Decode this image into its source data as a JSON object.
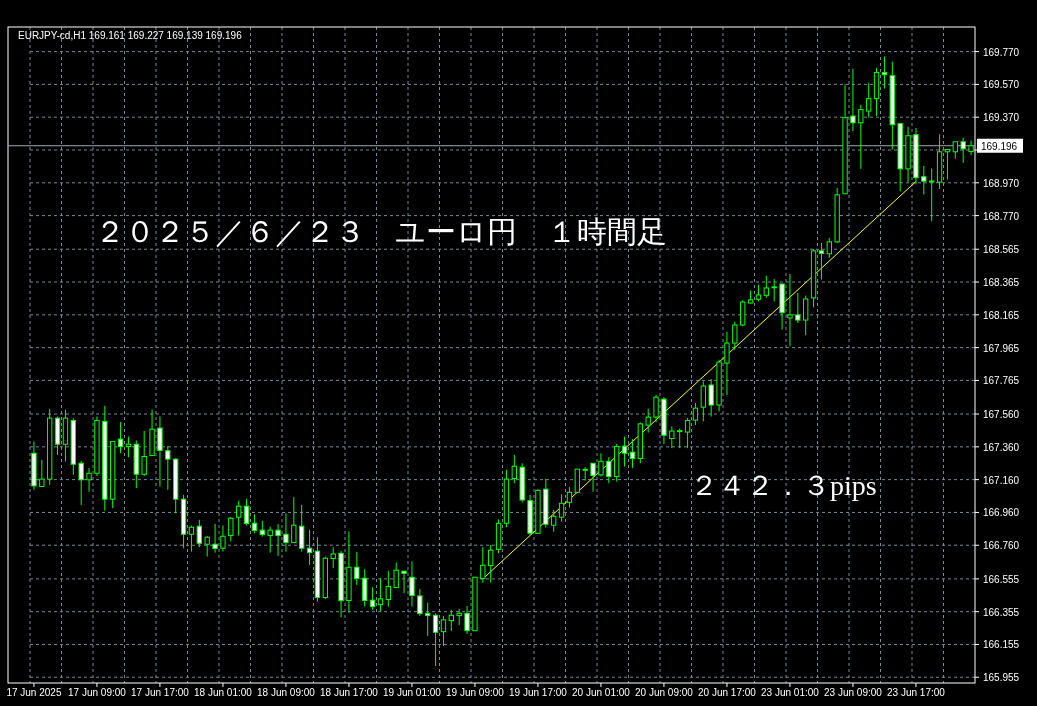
{
  "chart_data": {
    "type": "candlestick",
    "title": "２０２５／６／２３　ユーロ円　１時間足",
    "subtitle": "EURJPY-cd,H1  169.161 169.227 169.139 169.196",
    "annotations": [
      "２４２．３pips"
    ],
    "categories": [
      "17 Jun 2025",
      null,
      null,
      null,
      null,
      null,
      null,
      null,
      "17 Jun 09:00",
      null,
      null,
      null,
      null,
      null,
      null,
      null,
      "17 Jun 17:00",
      null,
      null,
      null,
      null,
      null,
      null,
      null,
      "18 Jun 01:00",
      null,
      null,
      null,
      null,
      null,
      null,
      null,
      "18 Jun 09:00",
      null,
      null,
      null,
      null,
      null,
      null,
      null,
      "18 Jun 17:00",
      null,
      null,
      null,
      null,
      null,
      null,
      null,
      "19 Jun 01:00",
      null,
      null,
      null,
      null,
      null,
      null,
      null,
      "19 Jun 09:00",
      null,
      null,
      null,
      null,
      null,
      null,
      null,
      "19 Jun 17:00",
      null,
      null,
      null,
      null,
      null,
      null,
      null,
      "20 Jun 01:00",
      null,
      null,
      null,
      null,
      null,
      null,
      null,
      "20 Jun 09:00",
      null,
      null,
      null,
      null,
      null,
      null,
      null,
      "20 Jun 17:00",
      null,
      null,
      null,
      null,
      null,
      null,
      null,
      "23 Jun 01:00",
      null,
      null,
      null,
      null,
      null,
      null,
      null,
      "23 Jun 09:00",
      null,
      null,
      null,
      null,
      null,
      null,
      null,
      "23 Jun 17:00",
      null,
      null,
      null,
      null,
      null,
      null,
      null
    ],
    "ohlc": [
      [
        167.321,
        167.393,
        167.098,
        167.122
      ],
      [
        167.118,
        167.281,
        167.118,
        167.163
      ],
      [
        167.163,
        167.59,
        167.128,
        167.535
      ],
      [
        167.535,
        167.545,
        167.311,
        167.376
      ],
      [
        167.376,
        167.586,
        167.27,
        167.535
      ],
      [
        167.521,
        167.535,
        167.189,
        167.254
      ],
      [
        167.26,
        167.275,
        167.006,
        167.159
      ],
      [
        167.159,
        167.23,
        167.087,
        167.199
      ],
      [
        167.199,
        167.545,
        167.183,
        167.521
      ],
      [
        167.515,
        167.61,
        166.971,
        167.041
      ],
      [
        167.041,
        167.393,
        166.986,
        167.393
      ],
      [
        167.407,
        167.511,
        167.321,
        167.362
      ],
      [
        167.362,
        167.423,
        167.297,
        167.376
      ],
      [
        167.376,
        167.399,
        167.108,
        167.193
      ],
      [
        167.193,
        167.458,
        167.183,
        167.301
      ],
      [
        167.307,
        167.586,
        167.307,
        167.468
      ],
      [
        167.474,
        167.545,
        167.118,
        167.338
      ],
      [
        167.336,
        167.366,
        167.098,
        167.285
      ],
      [
        167.285,
        167.291,
        166.955,
        167.041
      ],
      [
        167.041,
        167.067,
        166.741,
        166.827
      ],
      [
        166.827,
        166.88,
        166.721,
        166.87
      ],
      [
        166.876,
        166.915,
        166.748,
        166.772
      ],
      [
        166.766,
        166.817,
        166.691,
        166.809
      ],
      [
        166.766,
        166.89,
        166.715,
        166.74
      ],
      [
        166.742,
        166.88,
        166.721,
        166.815
      ],
      [
        166.819,
        166.931,
        166.783,
        166.925
      ],
      [
        166.931,
        167.031,
        166.819,
        166.998
      ],
      [
        166.998,
        167.043,
        166.88,
        166.892
      ],
      [
        166.894,
        166.949,
        166.833,
        166.85
      ],
      [
        166.852,
        166.909,
        166.813,
        166.825
      ],
      [
        166.819,
        166.874,
        166.715,
        166.852
      ],
      [
        166.852,
        166.89,
        166.695,
        166.819
      ],
      [
        166.827,
        166.955,
        166.721,
        166.776
      ],
      [
        166.776,
        167.053,
        166.776,
        166.882
      ],
      [
        166.876,
        167.006,
        166.721,
        166.742
      ],
      [
        166.742,
        166.854,
        166.64,
        166.715
      ],
      [
        166.724,
        166.809,
        166.416,
        166.441
      ],
      [
        166.441,
        166.691,
        166.432,
        166.681
      ],
      [
        166.679,
        166.748,
        166.62,
        166.707
      ],
      [
        166.711,
        166.725,
        166.321,
        166.422
      ],
      [
        166.423,
        166.844,
        166.349,
        166.626
      ],
      [
        166.626,
        166.718,
        166.518,
        166.557
      ],
      [
        166.559,
        166.614,
        166.386,
        166.423
      ],
      [
        166.425,
        166.504,
        166.366,
        166.386
      ],
      [
        166.398,
        166.559,
        166.355,
        166.433
      ],
      [
        166.429,
        166.604,
        166.386,
        166.508
      ],
      [
        166.502,
        166.655,
        166.502,
        166.608
      ],
      [
        166.602,
        166.602,
        166.467,
        166.589
      ],
      [
        166.565,
        166.661,
        166.386,
        166.453
      ],
      [
        166.451,
        166.494,
        166.329,
        166.343
      ],
      [
        166.345,
        166.41,
        166.207,
        166.331
      ],
      [
        166.333,
        166.345,
        166.024,
        166.229
      ],
      [
        166.233,
        166.329,
        166.146,
        166.305
      ],
      [
        166.3,
        166.366,
        166.237,
        166.333
      ],
      [
        166.331,
        166.372,
        166.274,
        166.345
      ],
      [
        166.345,
        166.39,
        166.219,
        166.239
      ],
      [
        166.239,
        166.565,
        166.239,
        166.565
      ],
      [
        166.557,
        166.748,
        166.532,
        166.638
      ],
      [
        166.636,
        166.762,
        166.532,
        166.73
      ],
      [
        166.735,
        166.918,
        166.711,
        166.894
      ],
      [
        166.894,
        167.22,
        166.87,
        167.163
      ],
      [
        167.167,
        167.311,
        167.138,
        167.242
      ],
      [
        167.236,
        167.26,
        167.02,
        167.036
      ],
      [
        167.032,
        167.067,
        166.823,
        166.833
      ],
      [
        166.833,
        167.102,
        166.829,
        167.095
      ],
      [
        167.102,
        167.165,
        166.868,
        166.888
      ],
      [
        166.882,
        166.975,
        166.843,
        166.937
      ],
      [
        166.931,
        167.071,
        166.904,
        167.016
      ],
      [
        167.022,
        167.114,
        166.99,
        167.083
      ],
      [
        167.083,
        167.224,
        167.077,
        167.224
      ],
      [
        167.22,
        167.236,
        167.154,
        167.22
      ],
      [
        167.26,
        167.26,
        167.087,
        167.185
      ],
      [
        167.189,
        167.321,
        167.179,
        167.272
      ],
      [
        167.272,
        167.297,
        167.138,
        167.179
      ],
      [
        167.179,
        167.378,
        167.148,
        167.362
      ],
      [
        167.364,
        167.423,
        167.24,
        167.321
      ],
      [
        167.327,
        167.407,
        167.232,
        167.289
      ],
      [
        167.289,
        167.509,
        167.26,
        167.5
      ],
      [
        167.492,
        167.592,
        167.447,
        167.541
      ],
      [
        167.541,
        167.677,
        167.509,
        167.663
      ],
      [
        167.651,
        167.663,
        167.376,
        167.431
      ],
      [
        167.411,
        167.484,
        167.352,
        167.456
      ],
      [
        167.45,
        167.472,
        167.352,
        167.456
      ],
      [
        167.45,
        167.535,
        167.352,
        167.521
      ],
      [
        167.523,
        167.627,
        167.493,
        167.596
      ],
      [
        167.602,
        167.759,
        167.515,
        167.731
      ],
      [
        167.737,
        167.773,
        167.545,
        167.615
      ],
      [
        167.615,
        167.891,
        167.576,
        167.877
      ],
      [
        167.871,
        168.062,
        167.676,
        167.993
      ],
      [
        167.993,
        168.123,
        167.952,
        168.103
      ],
      [
        168.103,
        168.254,
        168.095,
        168.243
      ],
      [
        168.237,
        168.313,
        168.233,
        168.256
      ],
      [
        168.26,
        168.349,
        168.247,
        168.286
      ],
      [
        168.284,
        168.404,
        168.268,
        168.329
      ],
      [
        168.327,
        168.384,
        168.247,
        168.333
      ],
      [
        168.353,
        168.353,
        168.075,
        168.178
      ],
      [
        168.146,
        168.414,
        167.973,
        168.164
      ],
      [
        168.164,
        168.298,
        168.115,
        168.133
      ],
      [
        168.133,
        168.282,
        168.04,
        168.262
      ],
      [
        168.268,
        168.567,
        168.211,
        168.555
      ],
      [
        168.555,
        168.604,
        168.38,
        168.539
      ],
      [
        168.537,
        168.634,
        168.512,
        168.61
      ],
      [
        168.61,
        168.939,
        168.604,
        168.897
      ],
      [
        168.903,
        169.57,
        168.903,
        169.367
      ],
      [
        169.377,
        169.666,
        169.285,
        169.336
      ],
      [
        169.336,
        169.446,
        169.055,
        169.416
      ],
      [
        169.408,
        169.58,
        169.367,
        169.483
      ],
      [
        169.483,
        169.672,
        169.377,
        169.642
      ],
      [
        169.642,
        169.739,
        169.544,
        169.629
      ],
      [
        169.623,
        169.709,
        169.173,
        169.324
      ],
      [
        169.33,
        169.33,
        168.919,
        169.055
      ],
      [
        169.055,
        169.312,
        168.974,
        169.257
      ],
      [
        169.263,
        169.304,
        168.96,
        169.001
      ],
      [
        169.007,
        169.072,
        168.899,
        168.98
      ],
      [
        168.978,
        169.057,
        168.736,
        168.978
      ],
      [
        168.974,
        169.265,
        168.933,
        169.159
      ],
      [
        169.159,
        169.173,
        168.99,
        169.173
      ],
      [
        169.159,
        169.22,
        169.117,
        169.22
      ],
      [
        169.22,
        169.245,
        169.092,
        169.177
      ],
      [
        169.161,
        169.227,
        169.139,
        169.196
      ]
    ],
    "series": [
      {
        "type": "line",
        "color": "#ffff00",
        "values": [
          null,
          null,
          null,
          null,
          null,
          null,
          null,
          null,
          null,
          null,
          null,
          null,
          null,
          null,
          null,
          null,
          null,
          null,
          null,
          null,
          null,
          null,
          null,
          null,
          null,
          null,
          null,
          null,
          null,
          null,
          null,
          null,
          null,
          null,
          null,
          null,
          null,
          null,
          null,
          null,
          null,
          null,
          null,
          null,
          null,
          null,
          null,
          null,
          null,
          null,
          null,
          null,
          null,
          null,
          null,
          null,
          null,
          166.555,
          null,
          null,
          null,
          null,
          null,
          null,
          null,
          null,
          null,
          null,
          null,
          null,
          null,
          null,
          null,
          null,
          null,
          null,
          null,
          null,
          null,
          null,
          null,
          null,
          null,
          null,
          null,
          null,
          null,
          null,
          null,
          null,
          null,
          null,
          null,
          null,
          null,
          null,
          null,
          null,
          null,
          null,
          null,
          null,
          null,
          null,
          null,
          null,
          null,
          null,
          null,
          null,
          null,
          null,
          168.978,
          null,
          null,
          null,
          null,
          null,
          null,
          null
        ]
      }
    ],
    "ylim": [
      165.92,
      169.92
    ],
    "yticks": [
      {
        "value": 165.955,
        "label": "165.955"
      },
      {
        "value": 166.155,
        "label": "166.155"
      },
      {
        "value": 166.355,
        "label": "166.355"
      },
      {
        "value": 166.555,
        "label": "166.555"
      },
      {
        "value": 166.76,
        "label": "166.760"
      },
      {
        "value": 166.96,
        "label": "166.960"
      },
      {
        "value": 167.16,
        "label": "167.160"
      },
      {
        "value": 167.36,
        "label": "167.360"
      },
      {
        "value": 167.56,
        "label": "167.560"
      },
      {
        "value": 167.765,
        "label": "167.765"
      },
      {
        "value": 167.965,
        "label": "167.965"
      },
      {
        "value": 168.165,
        "label": "168.165"
      },
      {
        "value": 168.365,
        "label": "168.365"
      },
      {
        "value": 168.565,
        "label": "168.565"
      },
      {
        "value": 168.77,
        "label": "168.770"
      },
      {
        "value": 168.97,
        "label": "168.970"
      },
      {
        "value": 169.17,
        "label": null
      },
      {
        "value": 169.37,
        "label": "169.370"
      },
      {
        "value": 169.57,
        "label": "169.570"
      },
      {
        "value": 169.77,
        "label": "169.770"
      }
    ],
    "ref_lines": [
      {
        "axis": "y",
        "value": 169.196,
        "label": "169.196",
        "color": "#a0a8b0"
      }
    ],
    "grid": true
  }
}
